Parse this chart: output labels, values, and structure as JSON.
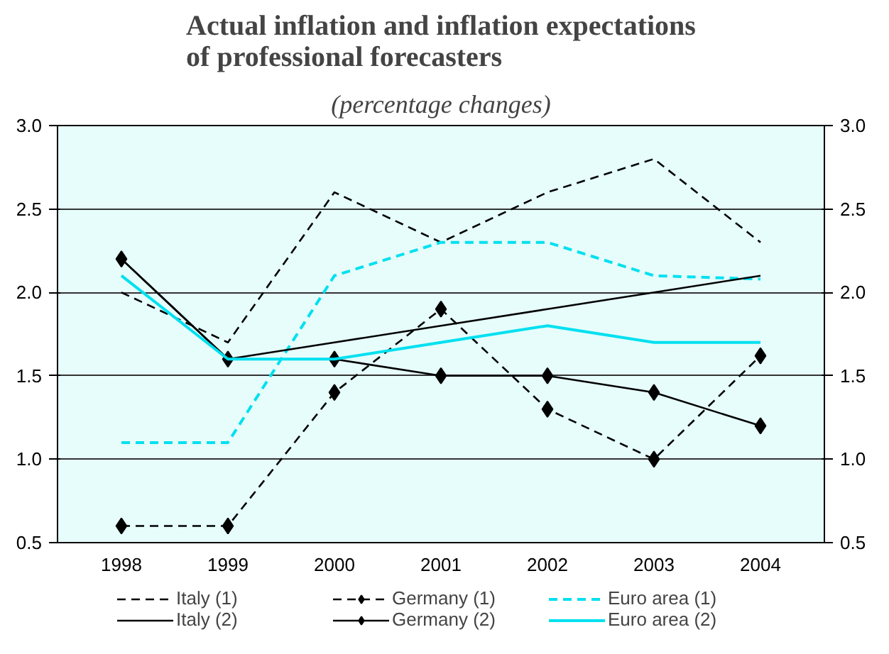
{
  "chart_data": {
    "type": "line",
    "title": "Actual inflation and inflation expectations\nof professional forecasters",
    "subtitle": "(percentage changes)",
    "categories": [
      "1998",
      "1999",
      "2000",
      "2001",
      "2002",
      "2003",
      "2004"
    ],
    "ylim": [
      0.5,
      3.0
    ],
    "yticks": [
      0.5,
      {
        "value": 1,
        "label": "1.0"
      },
      1.5,
      {
        "value": 2,
        "label": "2.0"
      },
      2.5,
      {
        "value": 3,
        "label": "3.0"
      }
    ],
    "y2lim": [
      0.5,
      3.0
    ],
    "y2ticks": [
      0.5,
      {
        "value": 1,
        "label": "1.0"
      },
      1.5,
      {
        "value": 2,
        "label": "2.0"
      },
      2.5,
      {
        "value": 3,
        "label": "3.0"
      }
    ],
    "grid": "y",
    "legend": "bottom",
    "series": [
      {
        "name": "Italy (1)",
        "color": "#000000",
        "line_style": "dashed",
        "marker": "none",
        "values": [
          2.0,
          1.7,
          2.6,
          2.3,
          2.6,
          2.8,
          2.3
        ]
      },
      {
        "name": "Germany (1)",
        "color": "#000000",
        "line_style": "dashed",
        "marker": "diamond",
        "values": [
          0.6,
          0.6,
          1.4,
          1.9,
          1.3,
          1.0,
          1.62
        ]
      },
      {
        "name": "Euro area (1)",
        "color": "#00e0f0",
        "line_style": "dashed",
        "marker": "none",
        "values": [
          1.1,
          1.1,
          2.1,
          2.3,
          2.3,
          2.1,
          2.08
        ]
      },
      {
        "name": "Italy (2)",
        "color": "#000000",
        "line_style": "solid",
        "marker": "none",
        "values": [
          2.2,
          1.6,
          1.7,
          1.8,
          1.9,
          2.0,
          2.1
        ]
      },
      {
        "name": "Germany (2)",
        "color": "#000000",
        "line_style": "solid",
        "marker": "diamond",
        "values": [
          2.2,
          1.6,
          1.6,
          1.5,
          1.5,
          1.4,
          1.2
        ]
      },
      {
        "name": "Euro area (2)",
        "color": "#00e0f0",
        "line_style": "solid",
        "marker": "none",
        "values": [
          2.1,
          1.6,
          1.6,
          1.7,
          1.8,
          1.7,
          1.7
        ]
      }
    ]
  }
}
